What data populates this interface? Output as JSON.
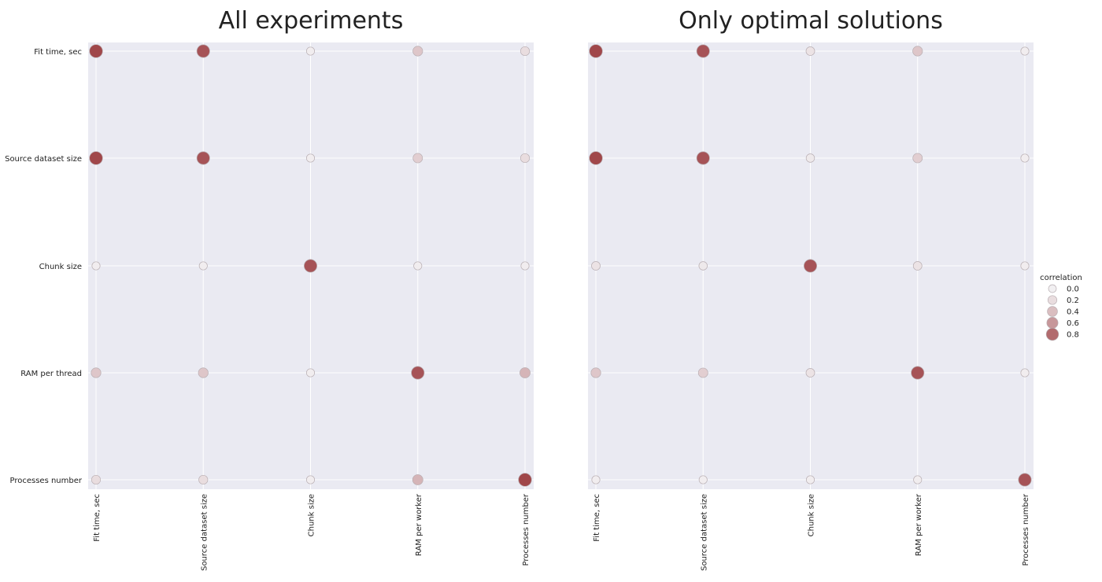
{
  "chart_data": [
    {
      "type": "scatter",
      "title": "All experiments",
      "xticklabels": [
        "Fit time, sec",
        "Source dataset size",
        "Chunk size",
        "RAM per worker",
        "Processes number"
      ],
      "yticklabels": [
        "Fit time, sec",
        "Source dataset size",
        "Chunk size",
        "RAM per thread",
        "Processes number"
      ],
      "correlation": [
        [
          0.95,
          0.9,
          0.05,
          0.35,
          0.2
        ],
        [
          0.95,
          0.9,
          0.05,
          0.3,
          0.2
        ],
        [
          0.05,
          0.05,
          0.9,
          0.05,
          0.05
        ],
        [
          0.35,
          0.35,
          0.05,
          0.9,
          0.45
        ],
        [
          0.2,
          0.2,
          0.05,
          0.45,
          0.95
        ]
      ]
    },
    {
      "type": "scatter",
      "title": "Only optimal solutions",
      "xticklabels": [
        "Fit time, sec",
        "Source dataset size",
        "Chunk size",
        "RAM per worker",
        "Processes number"
      ],
      "yticklabels": [
        "Fit time, sec",
        "Source dataset size",
        "Chunk size",
        "RAM per thread",
        "Processes number"
      ],
      "correlation": [
        [
          0.95,
          0.9,
          0.15,
          0.35,
          0.05
        ],
        [
          0.95,
          0.9,
          0.1,
          0.3,
          0.05
        ],
        [
          0.15,
          0.1,
          0.9,
          0.15,
          0.05
        ],
        [
          0.35,
          0.3,
          0.15,
          0.9,
          0.05
        ],
        [
          0.05,
          0.05,
          0.05,
          0.05,
          0.9
        ]
      ]
    }
  ],
  "legend": {
    "title": "correlation",
    "entries": [
      {
        "label": "0.0",
        "value": 0.0
      },
      {
        "label": "0.2",
        "value": 0.2
      },
      {
        "label": "0.4",
        "value": 0.4
      },
      {
        "label": "0.6",
        "value": 0.6
      },
      {
        "label": "0.8",
        "value": 0.8
      }
    ],
    "position": "right"
  },
  "colors": {
    "background": "#eaeaf2",
    "grid": "#ffffff",
    "low": "#f2f0f2",
    "high": "#9a3a3e",
    "edge": "#b8aeb2"
  }
}
